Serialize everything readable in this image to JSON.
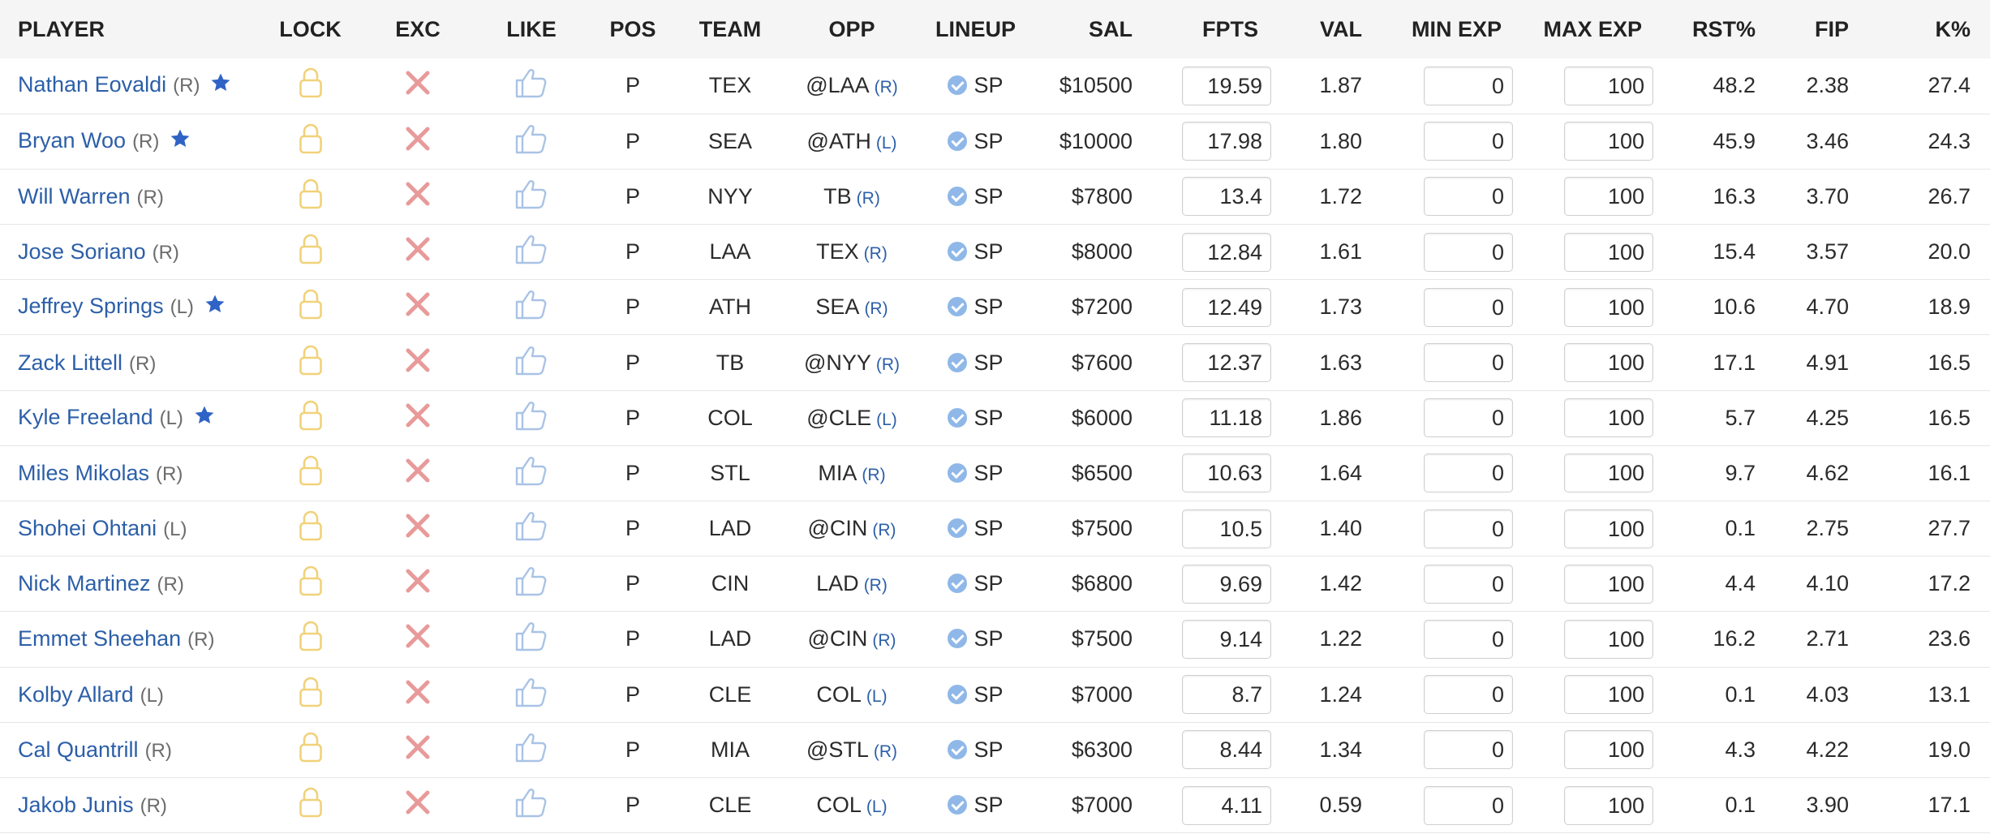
{
  "headers": {
    "player": "PLAYER",
    "lock": "LOCK",
    "exc": "EXC",
    "like": "LIKE",
    "pos": "POS",
    "team": "TEAM",
    "opp": "OPP",
    "lineup": "LINEUP",
    "sal": "SAL",
    "fpts": "FPTS",
    "val": "VAL",
    "min_exp": "MIN EXP",
    "max_exp": "MAX EXP",
    "rst": "RST%",
    "fip": "FIP",
    "k": "K%"
  },
  "icons": {
    "lock": "lock-icon",
    "exclude": "x-icon",
    "like": "thumbs-up-icon",
    "star": "star-icon",
    "confirmed": "check-circle-icon"
  },
  "colors": {
    "player_link": "#2c5fa8",
    "lock": "#f1d27a",
    "exclude": "#e89a9a",
    "like": "#a9c3e6",
    "star": "#2f63c6",
    "check": "#8fb8e8"
  },
  "rows": [
    {
      "name": "Nathan Eovaldi",
      "hand": "(R)",
      "star": true,
      "pos": "P",
      "team": "TEX",
      "opp": "@LAA",
      "opp_hand": "(R)",
      "lineup": "SP",
      "sal": "$10500",
      "fpts": "19.59",
      "val": "1.87",
      "min_exp": "0",
      "max_exp": "100",
      "rst": "48.2",
      "fip": "2.38",
      "k": "27.4"
    },
    {
      "name": "Bryan Woo",
      "hand": "(R)",
      "star": true,
      "pos": "P",
      "team": "SEA",
      "opp": "@ATH",
      "opp_hand": "(L)",
      "lineup": "SP",
      "sal": "$10000",
      "fpts": "17.98",
      "val": "1.80",
      "min_exp": "0",
      "max_exp": "100",
      "rst": "45.9",
      "fip": "3.46",
      "k": "24.3"
    },
    {
      "name": "Will Warren",
      "hand": "(R)",
      "star": false,
      "pos": "P",
      "team": "NYY",
      "opp": "TB",
      "opp_hand": "(R)",
      "lineup": "SP",
      "sal": "$7800",
      "fpts": "13.4",
      "val": "1.72",
      "min_exp": "0",
      "max_exp": "100",
      "rst": "16.3",
      "fip": "3.70",
      "k": "26.7"
    },
    {
      "name": "Jose Soriano",
      "hand": "(R)",
      "star": false,
      "pos": "P",
      "team": "LAA",
      "opp": "TEX",
      "opp_hand": "(R)",
      "lineup": "SP",
      "sal": "$8000",
      "fpts": "12.84",
      "val": "1.61",
      "min_exp": "0",
      "max_exp": "100",
      "rst": "15.4",
      "fip": "3.57",
      "k": "20.0"
    },
    {
      "name": "Jeffrey Springs",
      "hand": "(L)",
      "star": true,
      "pos": "P",
      "team": "ATH",
      "opp": "SEA",
      "opp_hand": "(R)",
      "lineup": "SP",
      "sal": "$7200",
      "fpts": "12.49",
      "val": "1.73",
      "min_exp": "0",
      "max_exp": "100",
      "rst": "10.6",
      "fip": "4.70",
      "k": "18.9"
    },
    {
      "name": "Zack Littell",
      "hand": "(R)",
      "star": false,
      "pos": "P",
      "team": "TB",
      "opp": "@NYY",
      "opp_hand": "(R)",
      "lineup": "SP",
      "sal": "$7600",
      "fpts": "12.37",
      "val": "1.63",
      "min_exp": "0",
      "max_exp": "100",
      "rst": "17.1",
      "fip": "4.91",
      "k": "16.5"
    },
    {
      "name": "Kyle Freeland",
      "hand": "(L)",
      "star": true,
      "pos": "P",
      "team": "COL",
      "opp": "@CLE",
      "opp_hand": "(L)",
      "lineup": "SP",
      "sal": "$6000",
      "fpts": "11.18",
      "val": "1.86",
      "min_exp": "0",
      "max_exp": "100",
      "rst": "5.7",
      "fip": "4.25",
      "k": "16.5"
    },
    {
      "name": "Miles Mikolas",
      "hand": "(R)",
      "star": false,
      "pos": "P",
      "team": "STL",
      "opp": "MIA",
      "opp_hand": "(R)",
      "lineup": "SP",
      "sal": "$6500",
      "fpts": "10.63",
      "val": "1.64",
      "min_exp": "0",
      "max_exp": "100",
      "rst": "9.7",
      "fip": "4.62",
      "k": "16.1"
    },
    {
      "name": "Shohei Ohtani",
      "hand": "(L)",
      "star": false,
      "pos": "P",
      "team": "LAD",
      "opp": "@CIN",
      "opp_hand": "(R)",
      "lineup": "SP",
      "sal": "$7500",
      "fpts": "10.5",
      "val": "1.40",
      "min_exp": "0",
      "max_exp": "100",
      "rst": "0.1",
      "fip": "2.75",
      "k": "27.7"
    },
    {
      "name": "Nick Martinez",
      "hand": "(R)",
      "star": false,
      "pos": "P",
      "team": "CIN",
      "opp": "LAD",
      "opp_hand": "(R)",
      "lineup": "SP",
      "sal": "$6800",
      "fpts": "9.69",
      "val": "1.42",
      "min_exp": "0",
      "max_exp": "100",
      "rst": "4.4",
      "fip": "4.10",
      "k": "17.2"
    },
    {
      "name": "Emmet Sheehan",
      "hand": "(R)",
      "star": false,
      "pos": "P",
      "team": "LAD",
      "opp": "@CIN",
      "opp_hand": "(R)",
      "lineup": "SP",
      "sal": "$7500",
      "fpts": "9.14",
      "val": "1.22",
      "min_exp": "0",
      "max_exp": "100",
      "rst": "16.2",
      "fip": "2.71",
      "k": "23.6"
    },
    {
      "name": "Kolby Allard",
      "hand": "(L)",
      "star": false,
      "pos": "P",
      "team": "CLE",
      "opp": "COL",
      "opp_hand": "(L)",
      "lineup": "SP",
      "sal": "$7000",
      "fpts": "8.7",
      "val": "1.24",
      "min_exp": "0",
      "max_exp": "100",
      "rst": "0.1",
      "fip": "4.03",
      "k": "13.1"
    },
    {
      "name": "Cal Quantrill",
      "hand": "(R)",
      "star": false,
      "pos": "P",
      "team": "MIA",
      "opp": "@STL",
      "opp_hand": "(R)",
      "lineup": "SP",
      "sal": "$6300",
      "fpts": "8.44",
      "val": "1.34",
      "min_exp": "0",
      "max_exp": "100",
      "rst": "4.3",
      "fip": "4.22",
      "k": "19.0"
    },
    {
      "name": "Jakob Junis",
      "hand": "(R)",
      "star": false,
      "pos": "P",
      "team": "CLE",
      "opp": "COL",
      "opp_hand": "(L)",
      "lineup": "SP",
      "sal": "$7000",
      "fpts": "4.11",
      "val": "0.59",
      "min_exp": "0",
      "max_exp": "100",
      "rst": "0.1",
      "fip": "3.90",
      "k": "17.1"
    }
  ]
}
